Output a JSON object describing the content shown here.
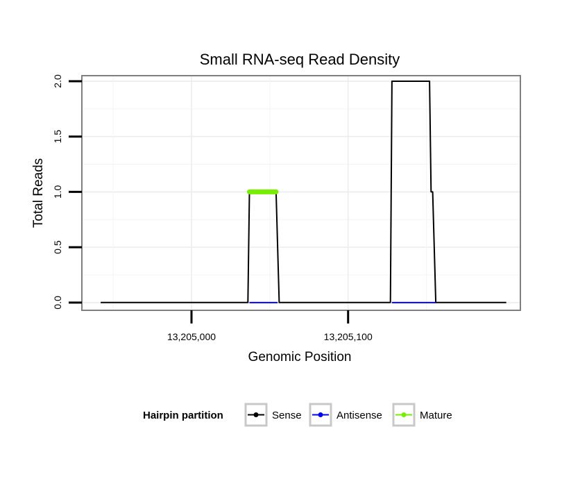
{
  "chart_data": {
    "type": "line",
    "title": "Small RNA-seq Read Density",
    "xlabel": "Genomic Position",
    "ylabel": "Total Reads",
    "xlim": [
      13204930,
      13205210
    ],
    "ylim": [
      -0.07,
      2.05
    ],
    "x_ticks": [
      {
        "value": 13205000,
        "label": "13,205,000"
      },
      {
        "value": 13205100,
        "label": "13,205,100"
      }
    ],
    "y_ticks": [
      {
        "value": 0.0,
        "label": "0.0"
      },
      {
        "value": 0.5,
        "label": "0.5"
      },
      {
        "value": 1.0,
        "label": "1.0"
      },
      {
        "value": 1.5,
        "label": "1.5"
      },
      {
        "value": 2.0,
        "label": "2.0"
      }
    ],
    "grid": true,
    "legend": {
      "title": "Hairpin partition",
      "placement": "bottom",
      "entries": [
        {
          "name": "Sense",
          "color": "#000000"
        },
        {
          "name": "Antisense",
          "color": "#0000ff"
        },
        {
          "name": "Mature",
          "color": "#77ee00"
        }
      ]
    },
    "series": [
      {
        "name": "Sense",
        "color": "#000000",
        "points": [
          [
            13204942,
            0
          ],
          [
            13205036,
            0
          ],
          [
            13205037,
            1
          ],
          [
            13205054,
            1
          ],
          [
            13205056,
            0
          ],
          [
            13205127,
            0
          ],
          [
            13205128,
            2
          ],
          [
            13205152,
            2
          ],
          [
            13205153,
            1
          ],
          [
            13205154,
            1
          ],
          [
            13205156,
            0
          ],
          [
            13205201,
            0
          ]
        ]
      },
      {
        "name": "Antisense",
        "color": "#0000ff",
        "points": [
          [
            13205037,
            0
          ],
          [
            13205055,
            0
          ],
          [
            13205128,
            0
          ],
          [
            13205156,
            0
          ]
        ]
      },
      {
        "name": "Mature",
        "color": "#77ee00",
        "points": [
          [
            13205037,
            1
          ],
          [
            13205054,
            1
          ]
        ]
      }
    ]
  }
}
